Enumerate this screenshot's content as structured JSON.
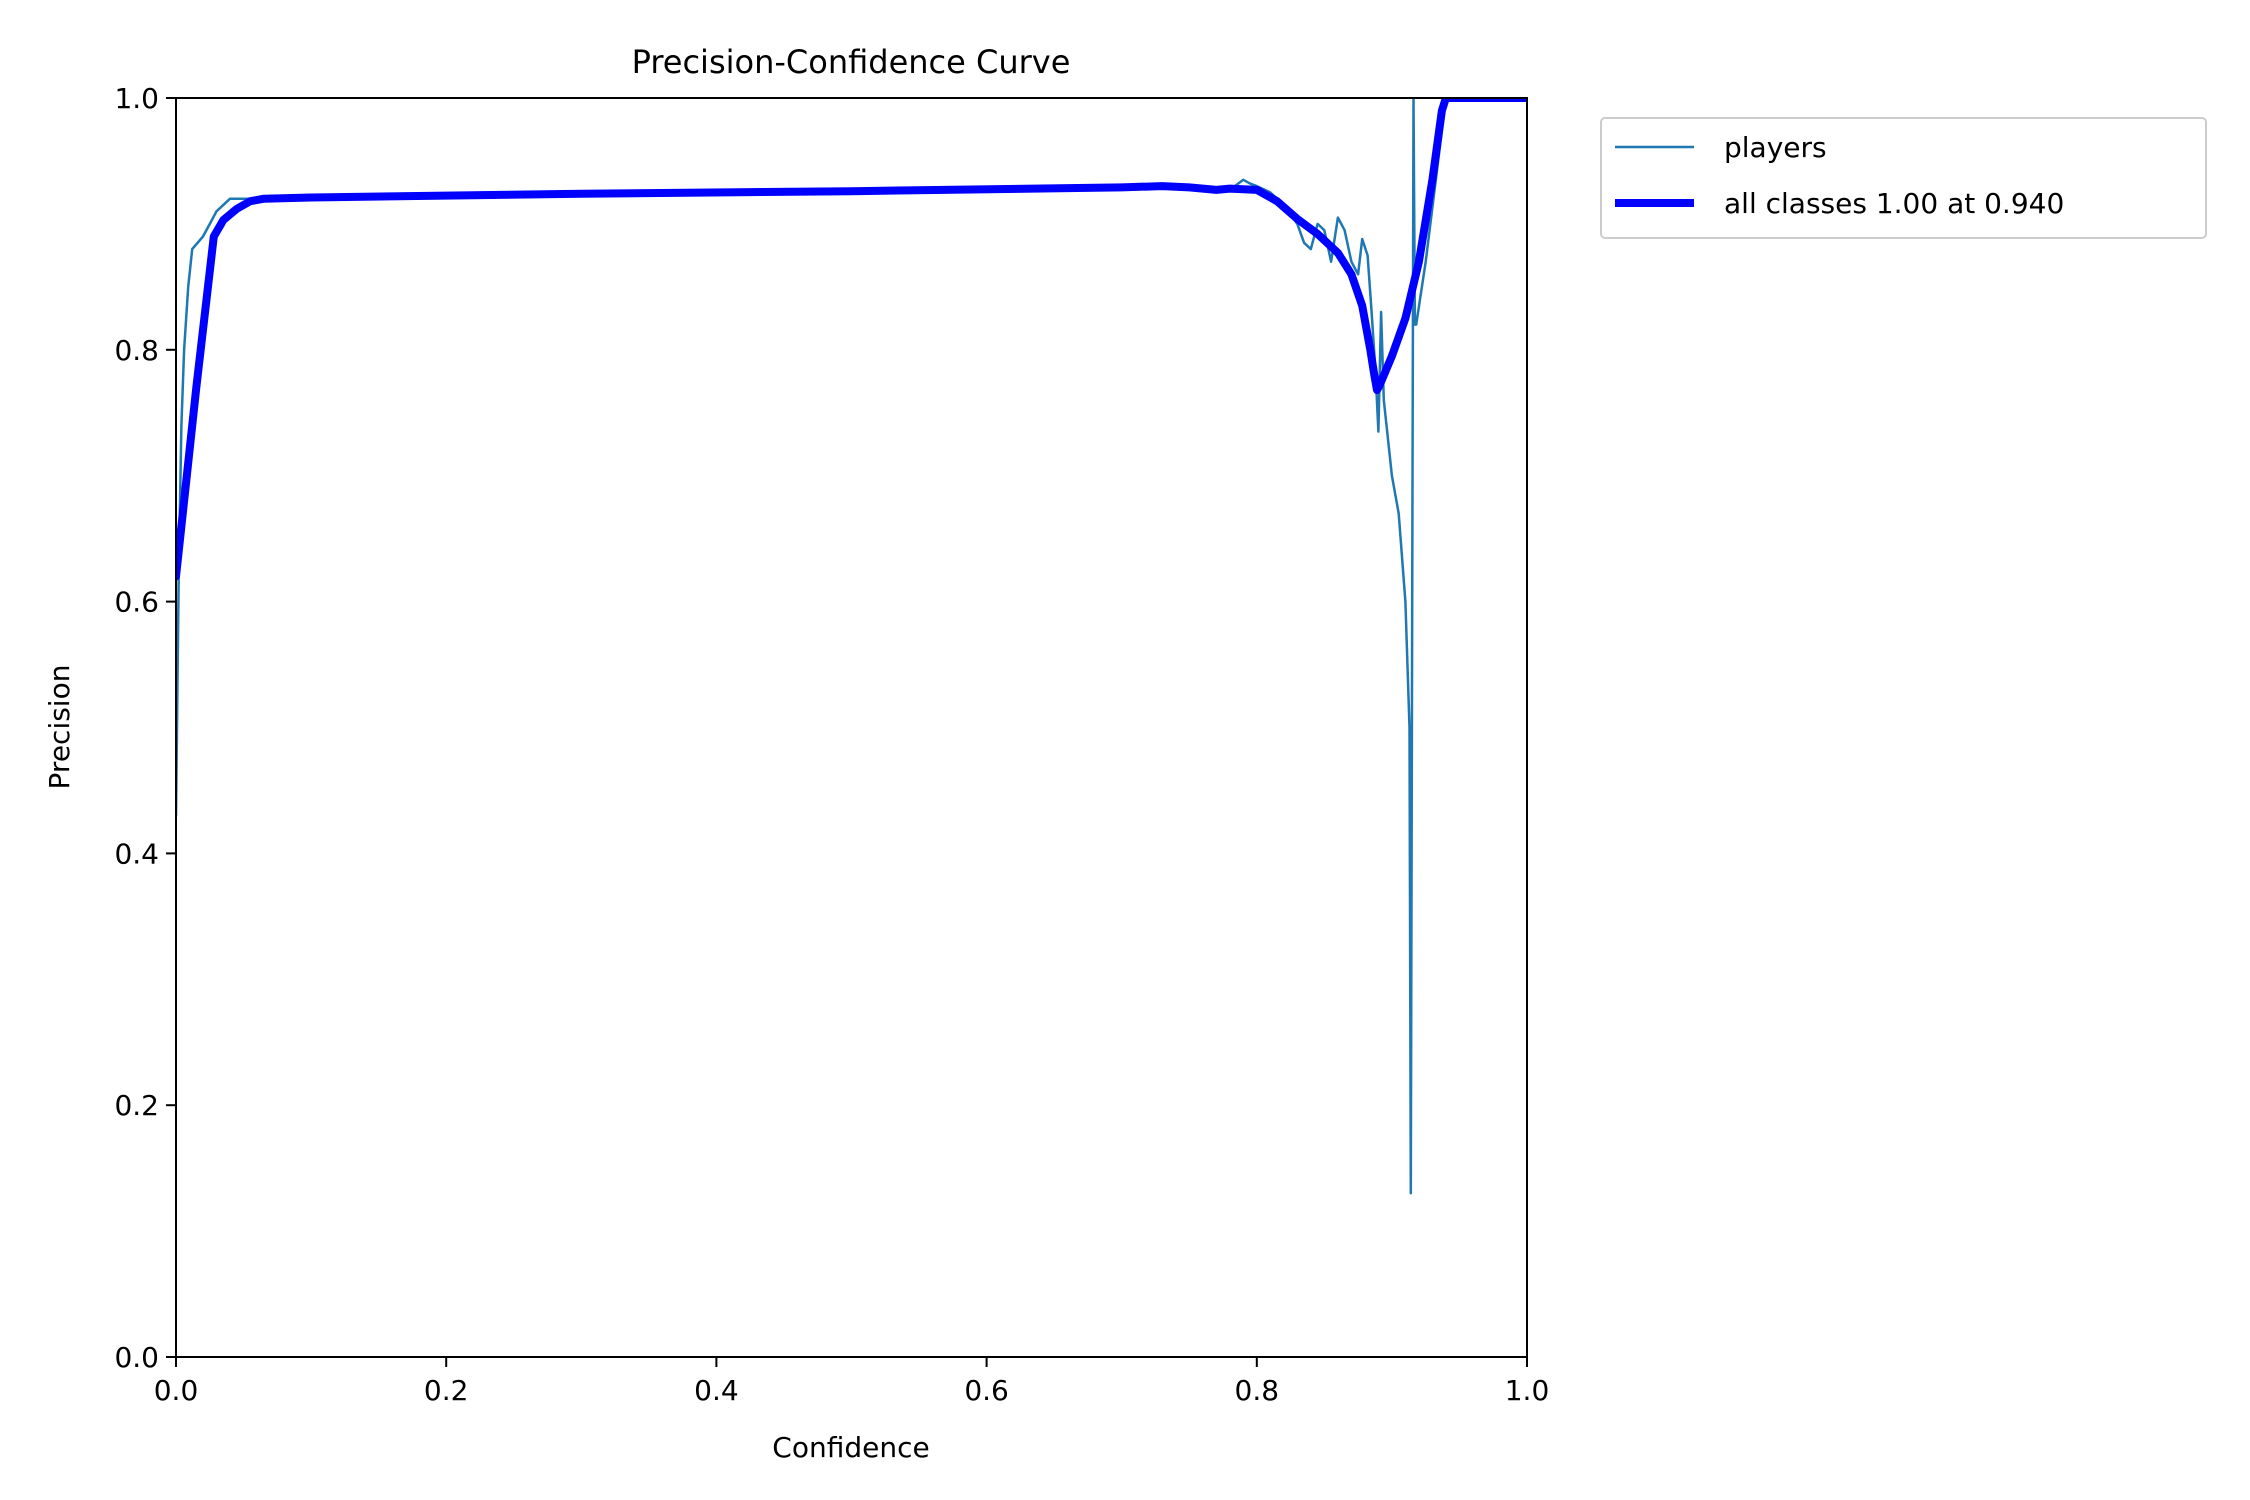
{
  "chart_data": {
    "type": "line",
    "title": "Precision-Confidence Curve",
    "xlabel": "Confidence",
    "ylabel": "Precision",
    "xlim": [
      0,
      1
    ],
    "ylim": [
      0,
      1
    ],
    "xticks": [
      0.0,
      0.2,
      0.4,
      0.6,
      0.8,
      1.0
    ],
    "yticks": [
      0.0,
      0.2,
      0.4,
      0.6,
      0.8,
      1.0
    ],
    "xtick_labels": [
      "0.0",
      "0.2",
      "0.4",
      "0.6",
      "0.8",
      "1.0"
    ],
    "ytick_labels": [
      "0.0",
      "0.2",
      "0.4",
      "0.6",
      "0.8",
      "1.0"
    ],
    "grid": false,
    "legend_placement": "outside-top-right",
    "series": [
      {
        "name": "players",
        "color": "#1f77b4",
        "x": [
          0.0,
          0.002,
          0.004,
          0.006,
          0.009,
          0.012,
          0.02,
          0.025,
          0.03,
          0.04,
          0.05,
          0.06,
          0.08,
          0.1,
          0.3,
          0.5,
          0.7,
          0.73,
          0.75,
          0.77,
          0.78,
          0.79,
          0.795,
          0.8,
          0.81,
          0.82,
          0.83,
          0.835,
          0.84,
          0.845,
          0.85,
          0.855,
          0.86,
          0.865,
          0.87,
          0.875,
          0.878,
          0.882,
          0.885,
          0.888,
          0.89,
          0.892,
          0.894,
          0.896,
          0.9,
          0.905,
          0.91,
          0.913,
          0.914,
          0.915,
          0.916,
          0.917,
          0.918,
          0.925,
          0.94,
          0.96,
          1.0
        ],
        "y": [
          0.43,
          0.62,
          0.74,
          0.8,
          0.85,
          0.88,
          0.89,
          0.9,
          0.91,
          0.92,
          0.92,
          0.92,
          0.92,
          0.92,
          0.924,
          0.927,
          0.93,
          0.93,
          0.929,
          0.928,
          0.927,
          0.935,
          0.932,
          0.93,
          0.925,
          0.915,
          0.9,
          0.885,
          0.88,
          0.9,
          0.895,
          0.87,
          0.905,
          0.895,
          0.87,
          0.86,
          0.888,
          0.875,
          0.83,
          0.78,
          0.735,
          0.83,
          0.76,
          0.74,
          0.7,
          0.67,
          0.6,
          0.5,
          0.13,
          0.6,
          1.0,
          0.82,
          0.82,
          0.87,
          1.0,
          1.0,
          1.0
        ]
      },
      {
        "name": "all classes 1.00 at 0.940",
        "color": "#0000ff",
        "x": [
          0.0,
          0.015,
          0.028,
          0.035,
          0.045,
          0.055,
          0.065,
          0.1,
          0.3,
          0.5,
          0.7,
          0.73,
          0.75,
          0.77,
          0.78,
          0.8,
          0.815,
          0.83,
          0.845,
          0.86,
          0.87,
          0.878,
          0.884,
          0.887,
          0.889,
          0.891,
          0.9,
          0.91,
          0.92,
          0.93,
          0.937,
          0.94,
          0.95,
          1.0
        ],
        "y": [
          0.62,
          0.77,
          0.89,
          0.903,
          0.912,
          0.918,
          0.92,
          0.921,
          0.924,
          0.926,
          0.929,
          0.93,
          0.929,
          0.927,
          0.928,
          0.927,
          0.918,
          0.904,
          0.892,
          0.877,
          0.86,
          0.835,
          0.8,
          0.78,
          0.768,
          0.772,
          0.795,
          0.825,
          0.87,
          0.935,
          0.99,
          1.0,
          1.0,
          1.0
        ]
      }
    ]
  }
}
